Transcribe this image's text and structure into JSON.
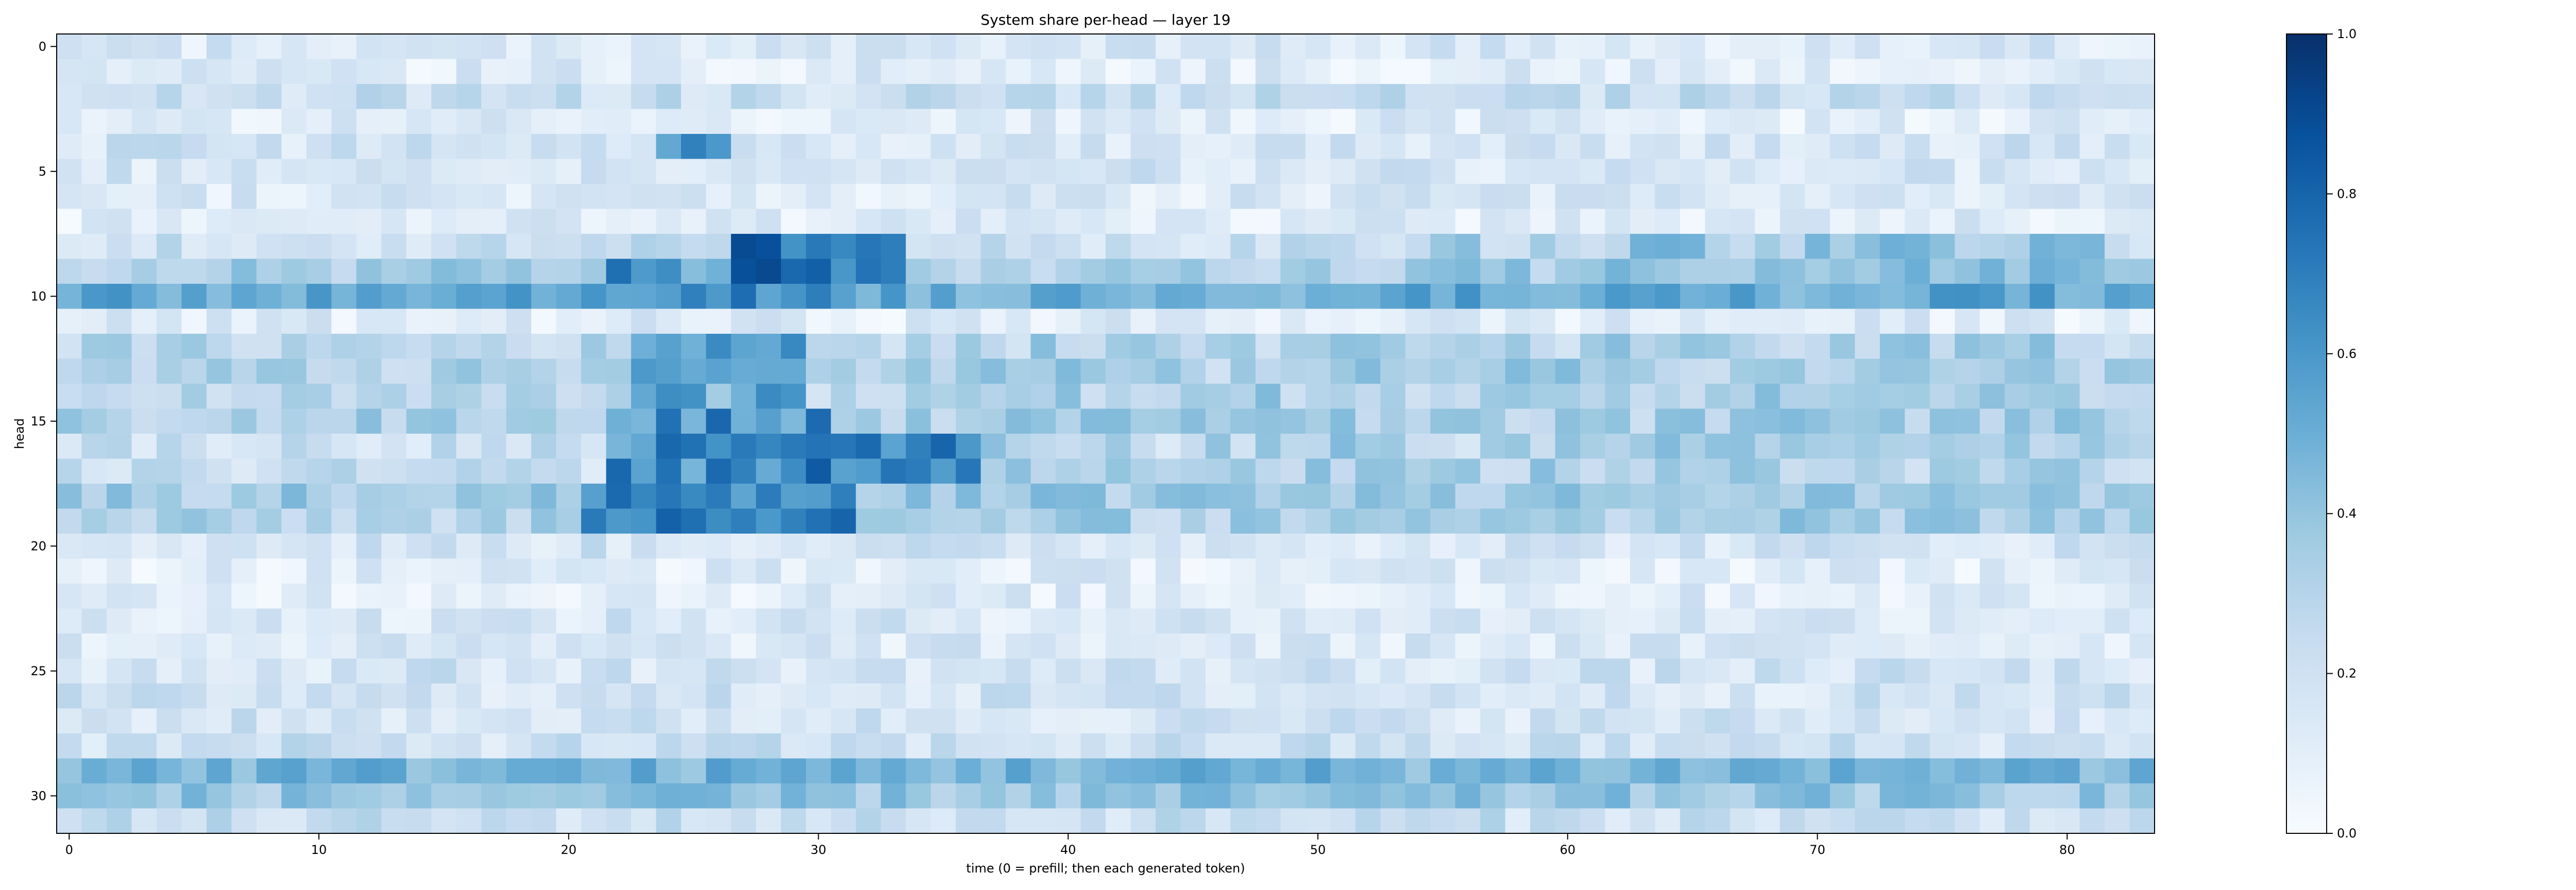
{
  "chart_data": {
    "type": "heatmap",
    "title": "System share per-head — layer 19",
    "xlabel": "time (0 = prefill; then each generated token)",
    "ylabel": "head",
    "n_cols": 84,
    "n_rows": 32,
    "xlim": [
      -0.5,
      83.5
    ],
    "ylim": [
      31.5,
      -0.5
    ],
    "x_ticks": [
      0,
      10,
      20,
      30,
      40,
      50,
      60,
      70,
      80
    ],
    "y_ticks": [
      0,
      5,
      10,
      15,
      20,
      25,
      30
    ],
    "colormap": "Blues",
    "vmin": 0.0,
    "vmax": 1.0,
    "colorbar_ticks": [
      "0.0",
      "0.2",
      "0.4",
      "0.6",
      "0.8",
      "1.0"
    ],
    "row_base": [
      0.15,
      0.12,
      0.22,
      0.12,
      0.18,
      0.16,
      0.14,
      0.12,
      0.22,
      0.34,
      0.52,
      0.12,
      0.28,
      0.3,
      0.26,
      0.32,
      0.22,
      0.22,
      0.36,
      0.3,
      0.18,
      0.12,
      0.12,
      0.16,
      0.14,
      0.18,
      0.18,
      0.18,
      0.2,
      0.48,
      0.38,
      0.22
    ],
    "hot_spots": [
      {
        "rows": [
          4,
          4
        ],
        "cols": [
          24,
          26
        ],
        "value": 0.85
      },
      {
        "rows": [
          8,
          9
        ],
        "cols": [
          27,
          33
        ],
        "value": 0.95
      },
      {
        "rows": [
          9,
          10
        ],
        "cols": [
          22,
          30
        ],
        "value": 0.78
      },
      {
        "rows": [
          12,
          14
        ],
        "cols": [
          23,
          29
        ],
        "value": 0.68
      },
      {
        "rows": [
          15,
          17
        ],
        "cols": [
          22,
          30
        ],
        "value": 0.8
      },
      {
        "rows": [
          16,
          17
        ],
        "cols": [
          30,
          36
        ],
        "value": 0.85
      },
      {
        "rows": [
          18,
          19
        ],
        "cols": [
          21,
          31
        ],
        "value": 0.85
      },
      {
        "rows": [
          12,
          19
        ],
        "cols": [
          37,
          82
        ],
        "value": 0.45
      },
      {
        "rows": [
          8,
          10
        ],
        "cols": [
          55,
          82
        ],
        "value": 0.5
      }
    ]
  }
}
